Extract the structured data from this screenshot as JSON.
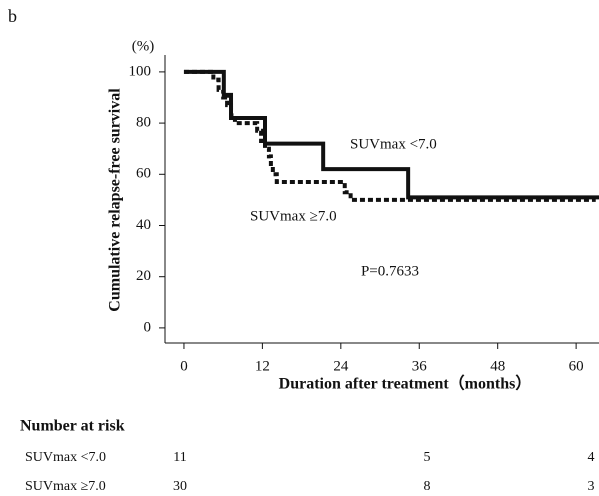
{
  "panel_label": "b",
  "chart_data": {
    "type": "line",
    "step": "post",
    "y_unit": "(%)",
    "y_label": "Cumulative relapse-free survival",
    "x_label": "Duration after treatment（months）",
    "annotation": "P=0.7633",
    "xlim": [
      -2.9,
      63.5
    ],
    "xticks": [
      0,
      12,
      24,
      36,
      48,
      60
    ],
    "ylim": [
      -5.9,
      106.6
    ],
    "yticks": [
      0,
      20,
      40,
      60,
      80,
      100
    ],
    "series": [
      {
        "name": "SUVmax <7.0",
        "color": "#111111",
        "dashed": false,
        "x": [
          0,
          6.1,
          7.2,
          12.4,
          21.3,
          34.3,
          63.5
        ],
        "values": [
          100,
          91,
          82,
          72,
          62,
          51,
          51
        ]
      },
      {
        "name": "SUVmax ≥7.0",
        "color": "#111111",
        "dashed": true,
        "x": [
          0,
          4.5,
          5.3,
          6,
          6.6,
          7.2,
          7.8,
          11.2,
          11.8,
          12.4,
          13,
          13.3,
          13.6,
          14.2,
          24.6,
          25.5,
          63
        ],
        "values": [
          100,
          97,
          93,
          90,
          87,
          83,
          80,
          77,
          73,
          70,
          67,
          63,
          60,
          57,
          53,
          50,
          50
        ]
      }
    ]
  },
  "risk_table": {
    "title": "Number at risk",
    "rows": [
      {
        "label": "SUVmax <7.0",
        "counts": [
          11,
          5,
          4
        ]
      },
      {
        "label": "SUVmax ≥7.0",
        "counts": [
          30,
          8,
          3
        ]
      }
    ]
  }
}
